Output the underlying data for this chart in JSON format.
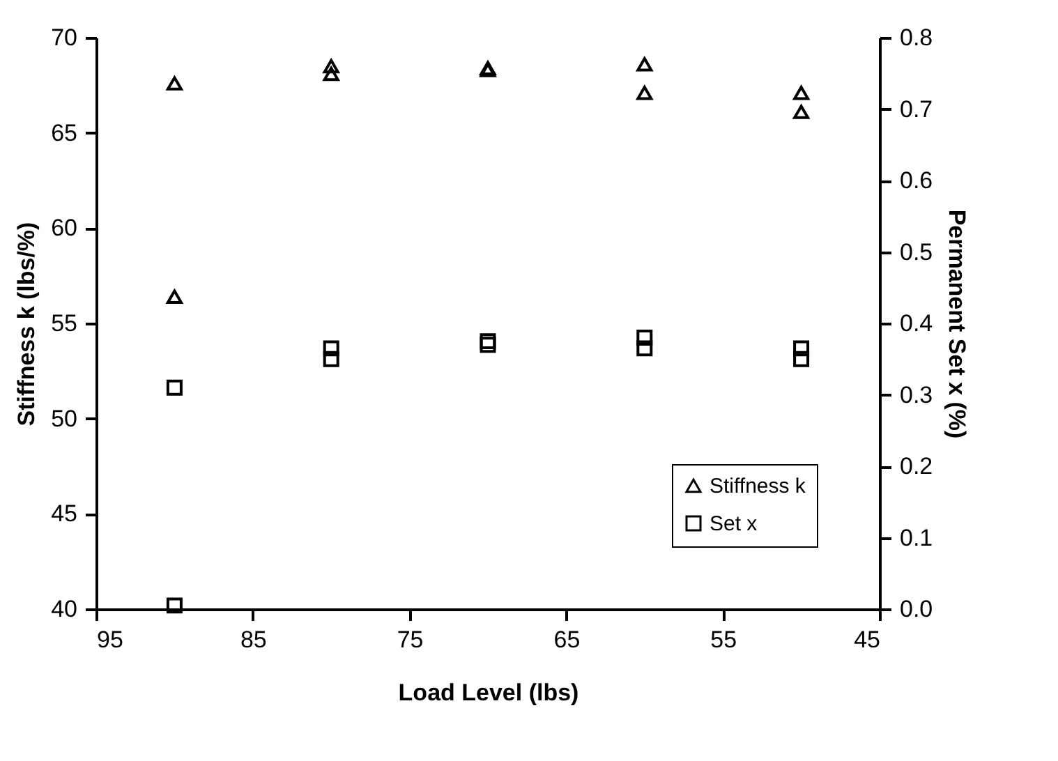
{
  "chart_data": {
    "type": "scatter",
    "xlabel": "Load Level (lbs)",
    "ylabel": "Stiffness k (lbs/%)",
    "y2label": "Permanent Set x (%)",
    "xlim": [
      95,
      45
    ],
    "xticks": [
      95,
      85,
      75,
      65,
      55,
      45
    ],
    "ylim": [
      40,
      70
    ],
    "yticks": [
      40,
      45,
      50,
      55,
      60,
      65,
      70
    ],
    "y2lim": [
      0,
      0.8
    ],
    "y2ticks": [
      {
        "value": 0,
        "label": "0.0"
      },
      {
        "value": 0.1,
        "label": "0.1"
      },
      {
        "value": 0.2,
        "label": "0.2"
      },
      {
        "value": 0.3,
        "label": "0.3"
      },
      {
        "value": 0.4,
        "label": "0.4"
      },
      {
        "value": 0.5,
        "label": "0.5"
      },
      {
        "value": 0.6,
        "label": "0.6"
      },
      {
        "value": 0.7,
        "label": "0.7"
      },
      {
        "value": 0.8,
        "label": "0.8"
      }
    ],
    "grid": false,
    "legend": "bottom right",
    "series": [
      {
        "name": "Stiffness k",
        "color": "#000000",
        "marker": "triangle",
        "x": [
          90,
          90,
          80,
          80,
          70,
          70,
          60,
          60,
          50,
          50
        ],
        "values": [
          67.6,
          56.4,
          68.5,
          68.1,
          68.4,
          68.3,
          68.6,
          67.1,
          67.1,
          66.1
        ]
      },
      {
        "name": "Set x",
        "color": "#000000",
        "marker": "square",
        "axis": "y2",
        "x": [
          90,
          90,
          80,
          80,
          70,
          70,
          60,
          60,
          50,
          50
        ],
        "values": [
          0.31,
          0.005,
          0.365,
          0.35,
          0.375,
          0.37,
          0.38,
          0.365,
          0.365,
          0.35
        ]
      }
    ]
  }
}
